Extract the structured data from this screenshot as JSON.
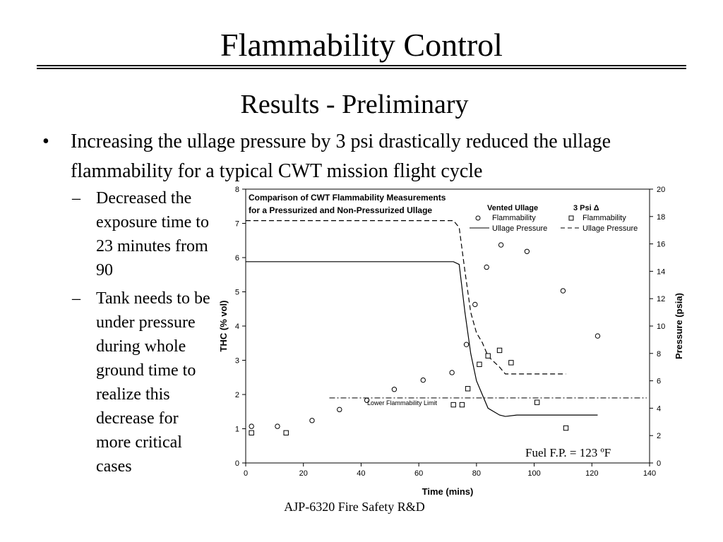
{
  "slide": {
    "title": "Flammability Control",
    "subtitle": "Results - Preliminary",
    "bullet_symbol": "•",
    "dash_symbol": "–",
    "main_bullet": "Increasing the ullage pressure by 3 psi drastically reduced the ullage flammability for a typical CWT mission flight cycle",
    "sub_bullets": [
      "Decreased the exposure time to 23 minutes from 90",
      "Tank needs to be under pressure during whole ground time to realize this decrease for more critical cases"
    ],
    "footer": "AJP-6320 Fire Safety R&D"
  },
  "chart_data": {
    "type": "scatter",
    "title_lines": [
      "Comparison of CWT Flammability Measurements",
      "for a Pressurized and Non-Pressurized Ullage"
    ],
    "xlabel": "Time (mins)",
    "ylabel": "THC (% vol)",
    "y2label": "Pressure (psia)",
    "xlim": [
      0,
      140
    ],
    "ylim": [
      0,
      8
    ],
    "y2lim": [
      0,
      20
    ],
    "xticks": [
      0,
      20,
      40,
      60,
      80,
      100,
      120,
      140
    ],
    "yticks": [
      0,
      1,
      2,
      3,
      4,
      5,
      6,
      7,
      8
    ],
    "y2ticks": [
      0,
      2,
      4,
      6,
      8,
      10,
      12,
      14,
      16,
      18,
      20
    ],
    "legend": {
      "group1_title": "Vented Ullage",
      "group2_title": "3 Psi Δ",
      "flammability_label": "Flammability",
      "pressure_label": "Ullage Pressure"
    },
    "lfl_label": "Lower Flammability Limit",
    "lfl_value": 1.9,
    "annotation": "Fuel F.P. = 123 ºF",
    "series": [
      {
        "name": "Vented Ullage Flammability",
        "marker": "circle",
        "axis": "left",
        "x": [
          2,
          11,
          23,
          32.5,
          42,
          51.5,
          61.5,
          71.5,
          76.5,
          79.5,
          83.5,
          88.5,
          97.5,
          110,
          122
        ],
        "y": [
          1.07,
          1.07,
          1.24,
          1.56,
          1.83,
          2.15,
          2.42,
          2.64,
          3.46,
          4.63,
          5.72,
          6.37,
          6.18,
          5.03,
          3.71
        ]
      },
      {
        "name": "3 Psi Δ Flammability",
        "marker": "square",
        "axis": "left",
        "x": [
          2,
          14,
          72,
          75,
          77,
          81,
          84,
          88,
          92,
          101,
          111
        ],
        "y": [
          0.88,
          0.88,
          1.7,
          1.7,
          2.17,
          2.88,
          3.13,
          3.29,
          2.93,
          1.77,
          1.02
        ]
      },
      {
        "name": "Vented Ullage Pressure",
        "style": "solid",
        "axis": "right",
        "x": [
          0,
          72,
          74,
          76,
          78,
          80,
          84,
          88,
          90,
          94,
          100,
          110,
          122
        ],
        "y": [
          14.7,
          14.7,
          14.5,
          11,
          8,
          6,
          4,
          3.5,
          3.4,
          3.5,
          3.5,
          3.5,
          3.5
        ]
      },
      {
        "name": "3 Psi Δ Ullage Pressure",
        "style": "dashed",
        "axis": "right",
        "x": [
          0,
          72,
          74,
          76,
          78,
          80,
          82,
          84,
          88,
          90,
          100,
          111
        ],
        "y": [
          17.7,
          17.7,
          17.2,
          14,
          11,
          9.5,
          8.8,
          7.8,
          7,
          6.5,
          6.5,
          6.5
        ]
      }
    ]
  }
}
